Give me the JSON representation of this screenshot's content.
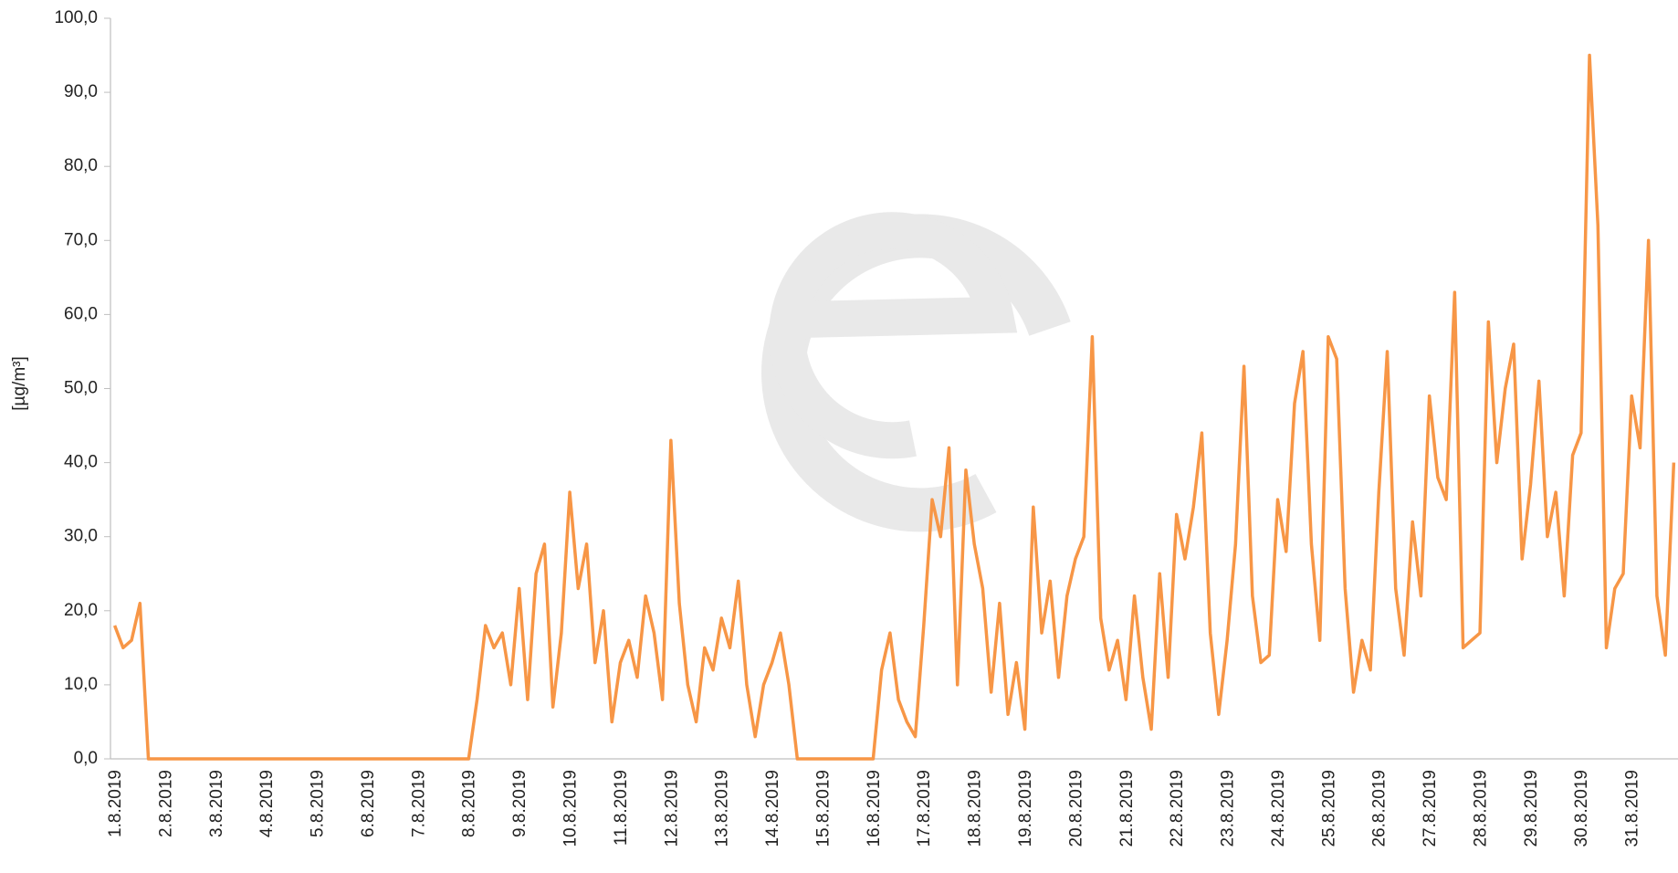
{
  "chart_data": {
    "type": "line",
    "y_label": "[µg/m³]",
    "categories": [
      "1.8.2019",
      null,
      null,
      null,
      null,
      null,
      "2.8.2019",
      null,
      null,
      null,
      null,
      null,
      "3.8.2019",
      null,
      null,
      null,
      null,
      null,
      "4.8.2019",
      null,
      null,
      null,
      null,
      null,
      "5.8.2019",
      null,
      null,
      null,
      null,
      null,
      "6.8.2019",
      null,
      null,
      null,
      null,
      null,
      "7.8.2019",
      null,
      null,
      null,
      null,
      null,
      "8.8.2019",
      null,
      null,
      null,
      null,
      null,
      "9.8.2019",
      null,
      null,
      null,
      null,
      null,
      "10.8.2019",
      null,
      null,
      null,
      null,
      null,
      "11.8.2019",
      null,
      null,
      null,
      null,
      null,
      "12.8.2019",
      null,
      null,
      null,
      null,
      null,
      "13.8.2019",
      null,
      null,
      null,
      null,
      null,
      "14.8.2019",
      null,
      null,
      null,
      null,
      null,
      "15.8.2019",
      null,
      null,
      null,
      null,
      null,
      "16.8.2019",
      null,
      null,
      null,
      null,
      null,
      "17.8.2019",
      null,
      null,
      null,
      null,
      null,
      "18.8.2019",
      null,
      null,
      null,
      null,
      null,
      "19.8.2019",
      null,
      null,
      null,
      null,
      null,
      "20.8.2019",
      null,
      null,
      null,
      null,
      null,
      "21.8.2019",
      null,
      null,
      null,
      null,
      null,
      "22.8.2019",
      null,
      null,
      null,
      null,
      null,
      "23.8.2019",
      null,
      null,
      null,
      null,
      null,
      "24.8.2019",
      null,
      null,
      null,
      null,
      null,
      "25.8.2019",
      null,
      null,
      null,
      null,
      null,
      "26.8.2019",
      null,
      null,
      null,
      null,
      null,
      "27.8.2019",
      null,
      null,
      null,
      null,
      null,
      "28.8.2019",
      null,
      null,
      null,
      null,
      null,
      "29.8.2019",
      null,
      null,
      null,
      null,
      null,
      "30.8.2019",
      null,
      null,
      null,
      null,
      null,
      "31.8.2019",
      null,
      null,
      null,
      null,
      null
    ],
    "series": [
      {
        "color": "#f79646",
        "values": [
          18,
          15,
          16,
          21,
          0,
          0,
          0,
          0,
          0,
          0,
          0,
          0,
          0,
          0,
          0,
          0,
          0,
          0,
          0,
          0,
          0,
          0,
          0,
          0,
          0,
          0,
          0,
          0,
          0,
          0,
          0,
          0,
          0,
          0,
          0,
          0,
          0,
          0,
          0,
          0,
          0,
          0,
          0,
          8,
          18,
          15,
          17,
          10,
          23,
          8,
          25,
          29,
          7,
          17,
          36,
          23,
          29,
          13,
          20,
          5,
          13,
          16,
          11,
          22,
          17,
          8,
          43,
          21,
          10,
          5,
          15,
          12,
          19,
          15,
          24,
          10,
          3,
          10,
          13,
          17,
          10,
          0,
          0,
          0,
          0,
          0,
          0,
          0,
          0,
          0,
          0,
          12,
          17,
          8,
          5,
          3,
          18,
          35,
          30,
          42,
          10,
          39,
          29,
          23,
          9,
          21,
          6,
          13,
          4,
          34,
          17,
          24,
          11,
          22,
          27,
          30,
          57,
          19,
          12,
          16,
          8,
          22,
          11,
          4,
          25,
          11,
          33,
          27,
          34,
          44,
          17,
          6,
          16,
          29,
          53,
          22,
          13,
          14,
          35,
          28,
          48,
          55,
          29,
          16,
          57,
          54,
          23,
          9,
          16,
          12,
          36,
          55,
          23,
          14,
          32,
          22,
          49,
          38,
          35,
          63,
          15,
          16,
          17,
          59,
          40,
          50,
          56,
          27,
          37,
          51,
          30,
          36,
          22,
          41,
          44,
          95,
          72,
          15,
          23,
          25,
          49,
          42,
          70,
          22,
          14,
          40
        ]
      }
    ],
    "ylim": [
      0,
      100
    ],
    "yticks": [
      {
        "value": 0,
        "label": "0,0"
      },
      {
        "value": 10,
        "label": "10,0"
      },
      {
        "value": 20,
        "label": "20,0"
      },
      {
        "value": 30,
        "label": "30,0"
      },
      {
        "value": 40,
        "label": "40,0"
      },
      {
        "value": 50,
        "label": "50,0"
      },
      {
        "value": 60,
        "label": "60,0"
      },
      {
        "value": 70,
        "label": "70,0"
      },
      {
        "value": 80,
        "label": "80,0"
      },
      {
        "value": 90,
        "label": "90,0"
      },
      {
        "value": 100,
        "label": "100,0"
      }
    ],
    "grid": false
  }
}
